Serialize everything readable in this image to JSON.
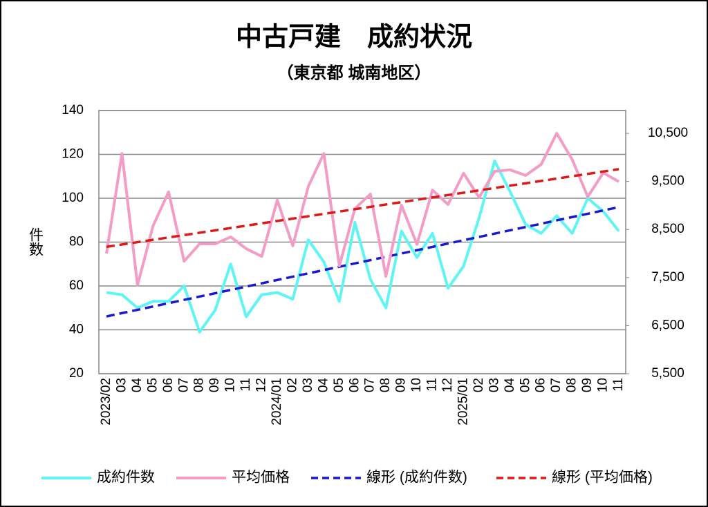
{
  "chart_data": {
    "type": "line",
    "title": "中古戸建　成約状況",
    "subtitle": "（東京都 城南地区）",
    "y_label": "件数",
    "categories": [
      "2023/02",
      "03",
      "04",
      "05",
      "06",
      "07",
      "08",
      "09",
      "10",
      "11",
      "12",
      "2024/01",
      "02",
      "03",
      "04",
      "05",
      "06",
      "07",
      "08",
      "09",
      "10",
      "11",
      "12",
      "2025/01",
      "02",
      "03",
      "04",
      "05",
      "06",
      "07",
      "08",
      "09",
      "10",
      "11"
    ],
    "series": [
      {
        "name": "成約件数",
        "color": "#5ff5f5",
        "axis": "y",
        "values": [
          57,
          56,
          50,
          53,
          53,
          60,
          39,
          49,
          70,
          46,
          56,
          57,
          54,
          81,
          71,
          53,
          89,
          63,
          50,
          85,
          73,
          84,
          59,
          69,
          91,
          117,
          103,
          88,
          84,
          92,
          84,
          100,
          94,
          85
        ],
        "trendline": {
          "name": "線形 (成約件数)",
          "color": "#1a1acc"
        }
      },
      {
        "name": "平均価格",
        "color": "#f29cc6",
        "axis": "y2",
        "values": [
          8000,
          10080,
          7340,
          8575,
          9280,
          7840,
          8200,
          8200,
          8345,
          8100,
          7940,
          9110,
          8160,
          9395,
          10080,
          7740,
          8935,
          9235,
          7525,
          9005,
          8190,
          9320,
          9020,
          9670,
          9165,
          9710,
          9740,
          9625,
          9855,
          10500,
          9955,
          9180,
          9680,
          9495
        ],
        "trendline": {
          "name": "線形 (平均価格)",
          "color": "#dd1a1a"
        }
      }
    ],
    "ylim": [
      20,
      140
    ],
    "yticks": [
      20,
      40,
      60,
      80,
      100,
      120,
      140
    ],
    "y2lim": [
      5500,
      10975
    ],
    "y2ticks": [
      {
        "value": 5500,
        "label": "5,500"
      },
      {
        "value": 6500,
        "label": "6,500"
      },
      {
        "value": 7500,
        "label": "7,500"
      },
      {
        "value": 8500,
        "label": "8,500"
      },
      {
        "value": 9500,
        "label": "9,500"
      },
      {
        "value": 10500,
        "label": "10,500"
      }
    ],
    "grid": true,
    "legend": "bottom"
  }
}
